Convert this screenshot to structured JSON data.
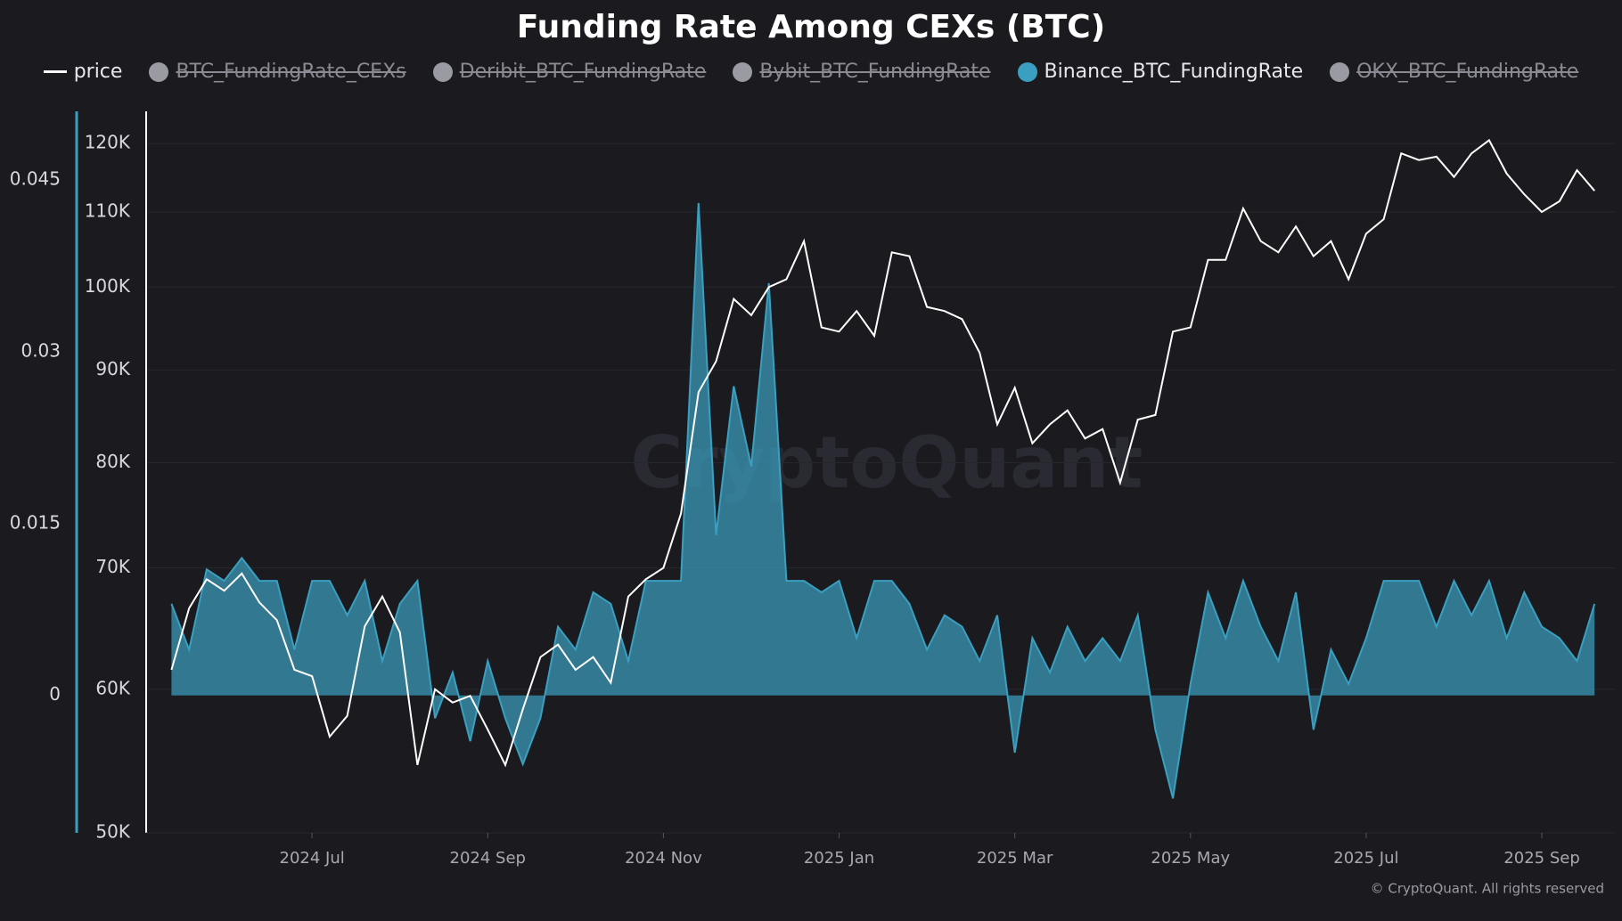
{
  "chart_data": {
    "type": "line",
    "title": "Funding Rate Among CEXs (BTC)",
    "watermark": "CryptoQuant",
    "credit": "© CryptoQuant. All rights reserved",
    "x": [
      0.4,
      0.6,
      0.8,
      1.0,
      1.2,
      1.4,
      1.6,
      1.8,
      2.0,
      2.2,
      2.4,
      2.6,
      2.8,
      3.0,
      3.2,
      3.4,
      3.6,
      3.8,
      4.0,
      4.2,
      4.4,
      4.6,
      4.8,
      5.0,
      5.2,
      5.4,
      5.6,
      5.8,
      6.0,
      6.2,
      6.4,
      6.6,
      6.8,
      7.0,
      7.2,
      7.4,
      7.6,
      7.8,
      8.0,
      8.2,
      8.4,
      8.6,
      8.8,
      9.0,
      9.2,
      9.4,
      9.6,
      9.8,
      10.0,
      10.2,
      10.4,
      10.6,
      10.8,
      11.0,
      11.2,
      11.4,
      11.6,
      11.8,
      12.0,
      12.2,
      12.4,
      12.6,
      12.8,
      13.0,
      13.2,
      13.4,
      13.6,
      13.8,
      14.0,
      14.2,
      14.4,
      14.6,
      14.8,
      15.0,
      15.2,
      15.4,
      15.6,
      15.8,
      16.0,
      16.2,
      16.4,
      16.6
    ],
    "xlim": [
      0.365,
      16.73
    ],
    "xticks": [
      {
        "value": 2,
        "label": "2024 Jul"
      },
      {
        "value": 4,
        "label": "2024 Sep"
      },
      {
        "value": 6,
        "label": "2024 Nov"
      },
      {
        "value": 8,
        "label": "2025 Jan"
      },
      {
        "value": 10,
        "label": "2025 Mar"
      },
      {
        "value": 12,
        "label": "2025 May"
      },
      {
        "value": 14,
        "label": "2025 Jul"
      },
      {
        "value": 16,
        "label": "2025 Sep"
      }
    ],
    "ylim": [
      -0.012,
      0.051
    ],
    "yticks": [
      0,
      0.015,
      0.03,
      0.045
    ],
    "y2lim": [
      50000,
      125000
    ],
    "y2_log": true,
    "y2ticks": [
      {
        "value": 50000,
        "label": "50K"
      },
      {
        "value": 60000,
        "label": "60K"
      },
      {
        "value": 70000,
        "label": "70K"
      },
      {
        "value": 80000,
        "label": "80K"
      },
      {
        "value": 90000,
        "label": "90K"
      },
      {
        "value": 100000,
        "label": "100K"
      },
      {
        "value": 110000,
        "label": "110K"
      },
      {
        "value": 120000,
        "label": "120K"
      }
    ],
    "grid": true,
    "series": [
      {
        "name": "price",
        "color": "#ffffff",
        "axis": "y2",
        "style": "line",
        "visible": true,
        "values": [
          61500,
          66500,
          69000,
          68000,
          69500,
          67000,
          65500,
          61500,
          61000,
          56500,
          58000,
          65000,
          67500,
          64500,
          54500,
          60000,
          59000,
          59500,
          57000,
          54500,
          58500,
          62500,
          63500,
          61500,
          62500,
          60500,
          67500,
          69000,
          70000,
          75000,
          87500,
          91000,
          98500,
          96500,
          100000,
          101000,
          106000,
          95000,
          94500,
          97000,
          94000,
          104500,
          104000,
          97500,
          97000,
          96000,
          92000,
          84000,
          88000,
          82000,
          84000,
          85500,
          82500,
          83500,
          78000,
          84500,
          85000,
          94500,
          95000,
          103500,
          103500,
          110500,
          106000,
          104500,
          108000,
          104000,
          106000,
          101000,
          107000,
          109000,
          118500,
          117500,
          118000,
          115000,
          118500,
          120500,
          115500,
          112500,
          110000,
          111500,
          116000,
          113000
        ]
      },
      {
        "name": "BTC_FundingRate_CEXs",
        "color": "#9a9aa3",
        "visible": false
      },
      {
        "name": "Deribit_BTC_FundingRate",
        "color": "#9a9aa3",
        "visible": false
      },
      {
        "name": "Bybit_BTC_FundingRate",
        "color": "#9a9aa3",
        "visible": false
      },
      {
        "name": "Binance_BTC_FundingRate",
        "color": "#3a9fc0",
        "style": "area",
        "visible": true,
        "values": [
          0.008,
          0.004,
          0.011,
          0.01,
          0.012,
          0.01,
          0.01,
          0.004,
          0.01,
          0.01,
          0.007,
          0.01,
          0.003,
          0.008,
          0.01,
          -0.002,
          0.002,
          -0.004,
          0.003,
          -0.002,
          -0.006,
          -0.002,
          0.006,
          0.004,
          0.009,
          0.008,
          0.003,
          0.01,
          0.01,
          0.01,
          0.043,
          0.014,
          0.027,
          0.02,
          0.036,
          0.01,
          0.01,
          0.009,
          0.01,
          0.005,
          0.01,
          0.01,
          0.008,
          0.004,
          0.007,
          0.006,
          0.003,
          0.007,
          -0.005,
          0.005,
          0.002,
          0.006,
          0.003,
          0.005,
          0.003,
          0.007,
          -0.003,
          -0.009,
          0.001,
          0.009,
          0.005,
          0.01,
          0.006,
          0.003,
          0.009,
          -0.003,
          0.004,
          0.001,
          0.005,
          0.01,
          0.01,
          0.01,
          0.006,
          0.01,
          0.007,
          0.01,
          0.005,
          0.009,
          0.006,
          0.005,
          0.003,
          0.008
        ]
      },
      {
        "name": "OKX_BTC_FundingRate",
        "color": "#9a9aa3",
        "visible": false
      }
    ]
  }
}
